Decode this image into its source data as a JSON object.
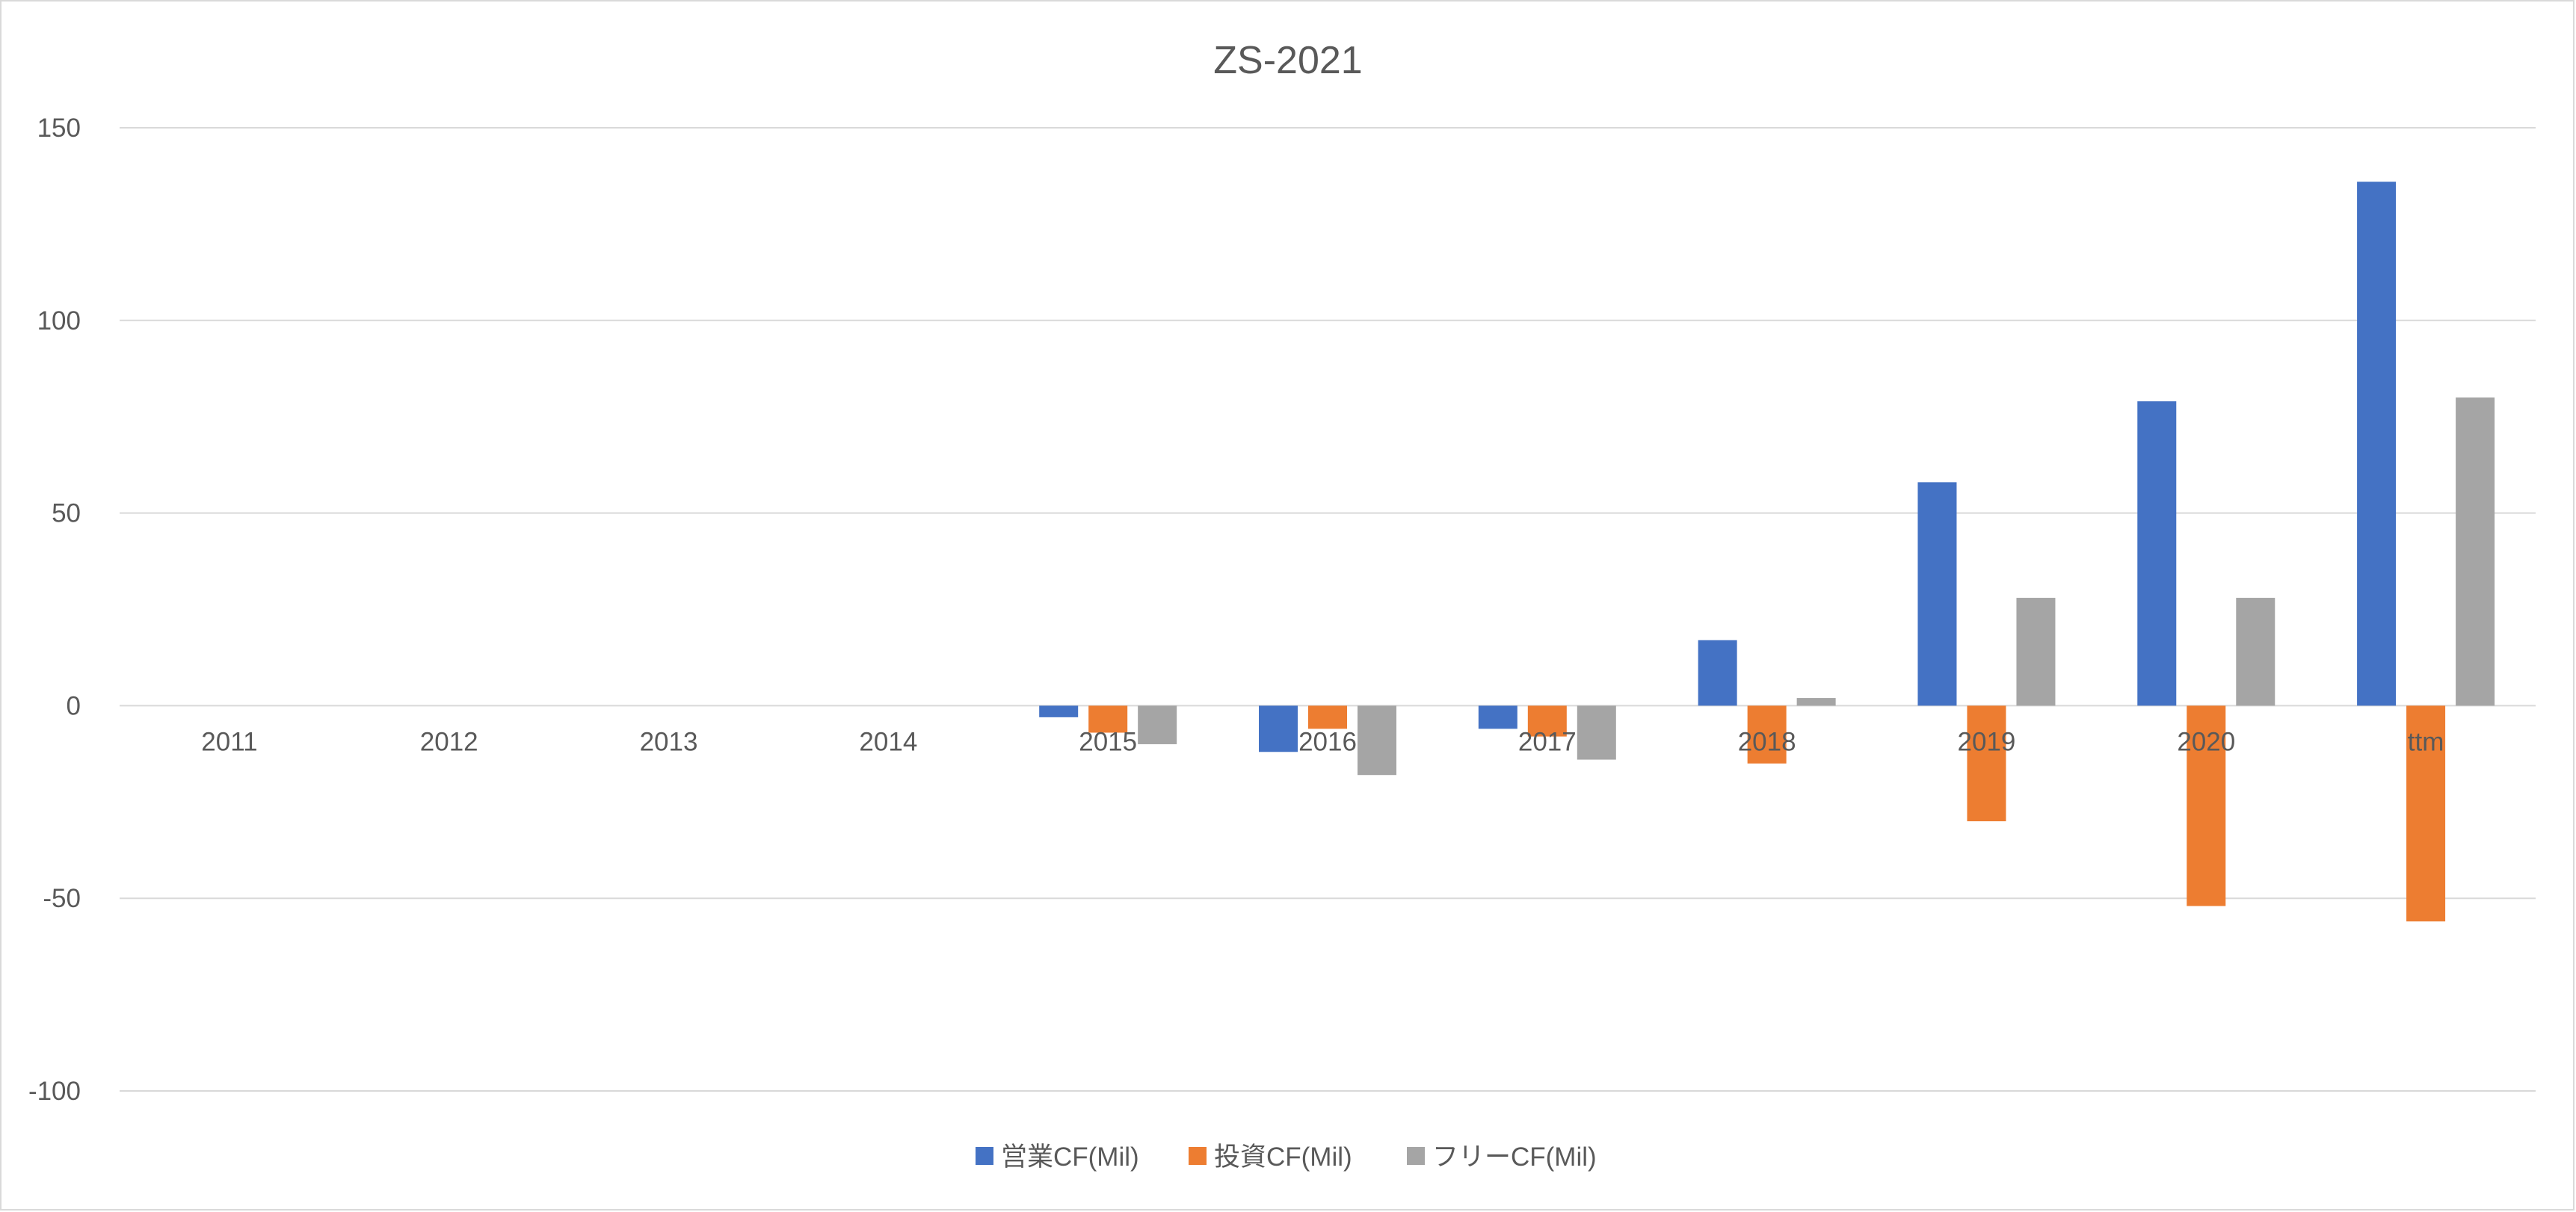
{
  "chart_data": {
    "type": "bar",
    "title": "ZS-2021",
    "categories": [
      "2011",
      "2012",
      "2013",
      "2014",
      "2015",
      "2016",
      "2017",
      "2018",
      "2019",
      "2020",
      "ttm"
    ],
    "series": [
      {
        "name": "営業CF(Mil)",
        "color": "#4472c4",
        "values": [
          null,
          null,
          null,
          null,
          -3,
          -12,
          -6,
          17,
          58,
          79,
          136
        ]
      },
      {
        "name": "投資CF(Mil)",
        "color": "#ed7d31",
        "values": [
          null,
          null,
          null,
          null,
          -7,
          -6,
          -8,
          -15,
          -30,
          -52,
          -56
        ]
      },
      {
        "name": "フリーCF(Mil)",
        "color": "#a5a5a5",
        "values": [
          null,
          null,
          null,
          null,
          -10,
          -18,
          -14,
          2,
          28,
          28,
          80
        ]
      }
    ],
    "ylim": [
      -100,
      150
    ],
    "yticks": [
      150,
      100,
      50,
      0,
      -50,
      -100
    ],
    "ytick_labels": [
      "150",
      "100",
      "50",
      "0",
      "-50",
      "-100"
    ],
    "xlabel": "",
    "ylabel": "",
    "grid": true,
    "legend_position": "bottom"
  }
}
